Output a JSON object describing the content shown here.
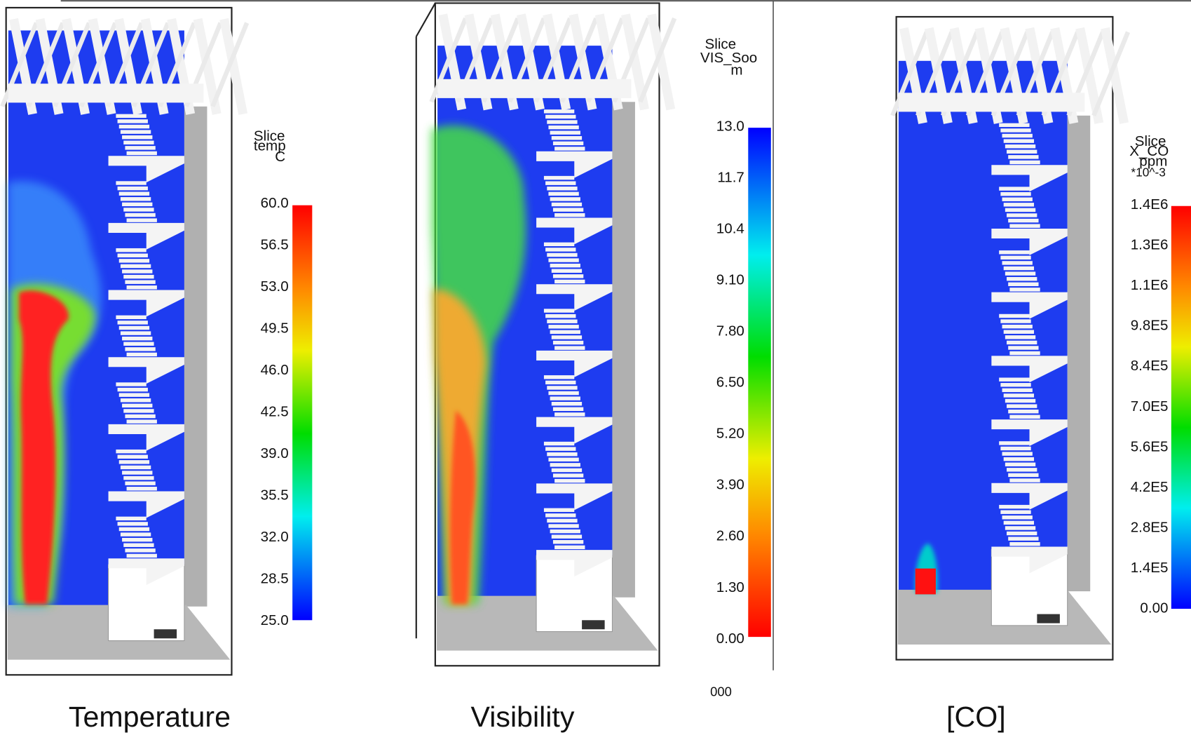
{
  "panels": [
    {
      "caption": "Temperature",
      "legend": {
        "title": [
          "Slice",
          "temp",
          "C"
        ],
        "ticks": [
          "60.0",
          "56.5",
          "53.0",
          "49.5",
          "46.0",
          "42.5",
          "39.0",
          "35.5",
          "32.0",
          "28.5",
          "25.0"
        ]
      }
    },
    {
      "caption": "Visibility",
      "legend": {
        "title": [
          "Slice",
          "VIS_Soo",
          "m"
        ],
        "ticks": [
          "13.0",
          "11.7",
          "10.4",
          "9.10",
          "7.80",
          "6.50",
          "5.20",
          "3.90",
          "2.60",
          "1.30",
          "0.00"
        ],
        "extra": "000"
      }
    },
    {
      "caption": "[CO]",
      "legend": {
        "title": [
          "Slice",
          "X_CO",
          "ppm",
          "*10^-3"
        ],
        "ticks": [
          "1.4E6",
          "1.3E6",
          "1.1E6",
          "9.8E5",
          "8.4E5",
          "7.0E5",
          "5.6E5",
          "4.2E5",
          "2.8E5",
          "1.4E5",
          "0.00"
        ]
      }
    }
  ]
}
